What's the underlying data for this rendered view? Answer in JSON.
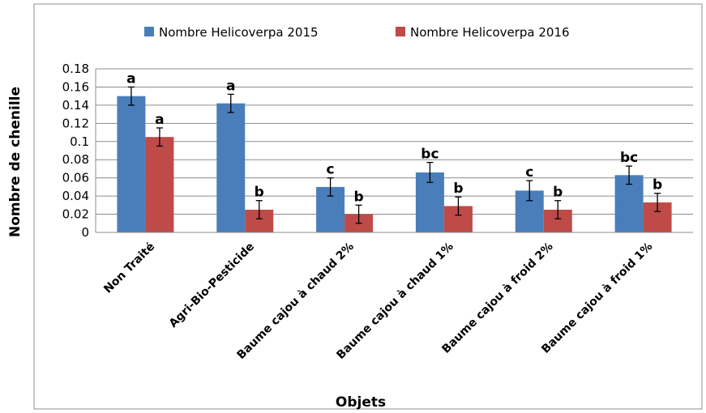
{
  "chart_data": {
    "type": "bar",
    "x_label": "Objets",
    "y_label": "Nombre de chenille",
    "categories": [
      "Non Traité",
      "Agri-Bio-Pesticide",
      "Baume cajou à chaud 2%",
      "Baume cajou à chaud 1%",
      "Baume cajou à froid 2%",
      "Baume cajou à froid 1%"
    ],
    "series": [
      {
        "name": "Nombre Helicoverpa 2015",
        "color": "#4a7ebb",
        "values": [
          0.15,
          0.142,
          0.05,
          0.066,
          0.046,
          0.063
        ],
        "errors": [
          0.01,
          0.01,
          0.01,
          0.011,
          0.011,
          0.01
        ],
        "letters": [
          "a",
          "a",
          "c",
          "bc",
          "c",
          "bc"
        ]
      },
      {
        "name": "Nombre Helicoverpa 2016",
        "color": "#be4b48",
        "values": [
          0.105,
          0.025,
          0.02,
          0.029,
          0.025,
          0.033
        ],
        "errors": [
          0.01,
          0.01,
          0.01,
          0.01,
          0.01,
          0.01
        ],
        "letters": [
          "a",
          "b",
          "b",
          "b",
          "b",
          "b"
        ]
      }
    ],
    "ylim": [
      0,
      0.18
    ],
    "yticks": [
      0,
      0.02,
      0.04,
      0.06,
      0.08,
      0.1,
      0.12,
      0.14,
      0.16,
      0.18
    ],
    "grid": true,
    "legend": "top"
  }
}
